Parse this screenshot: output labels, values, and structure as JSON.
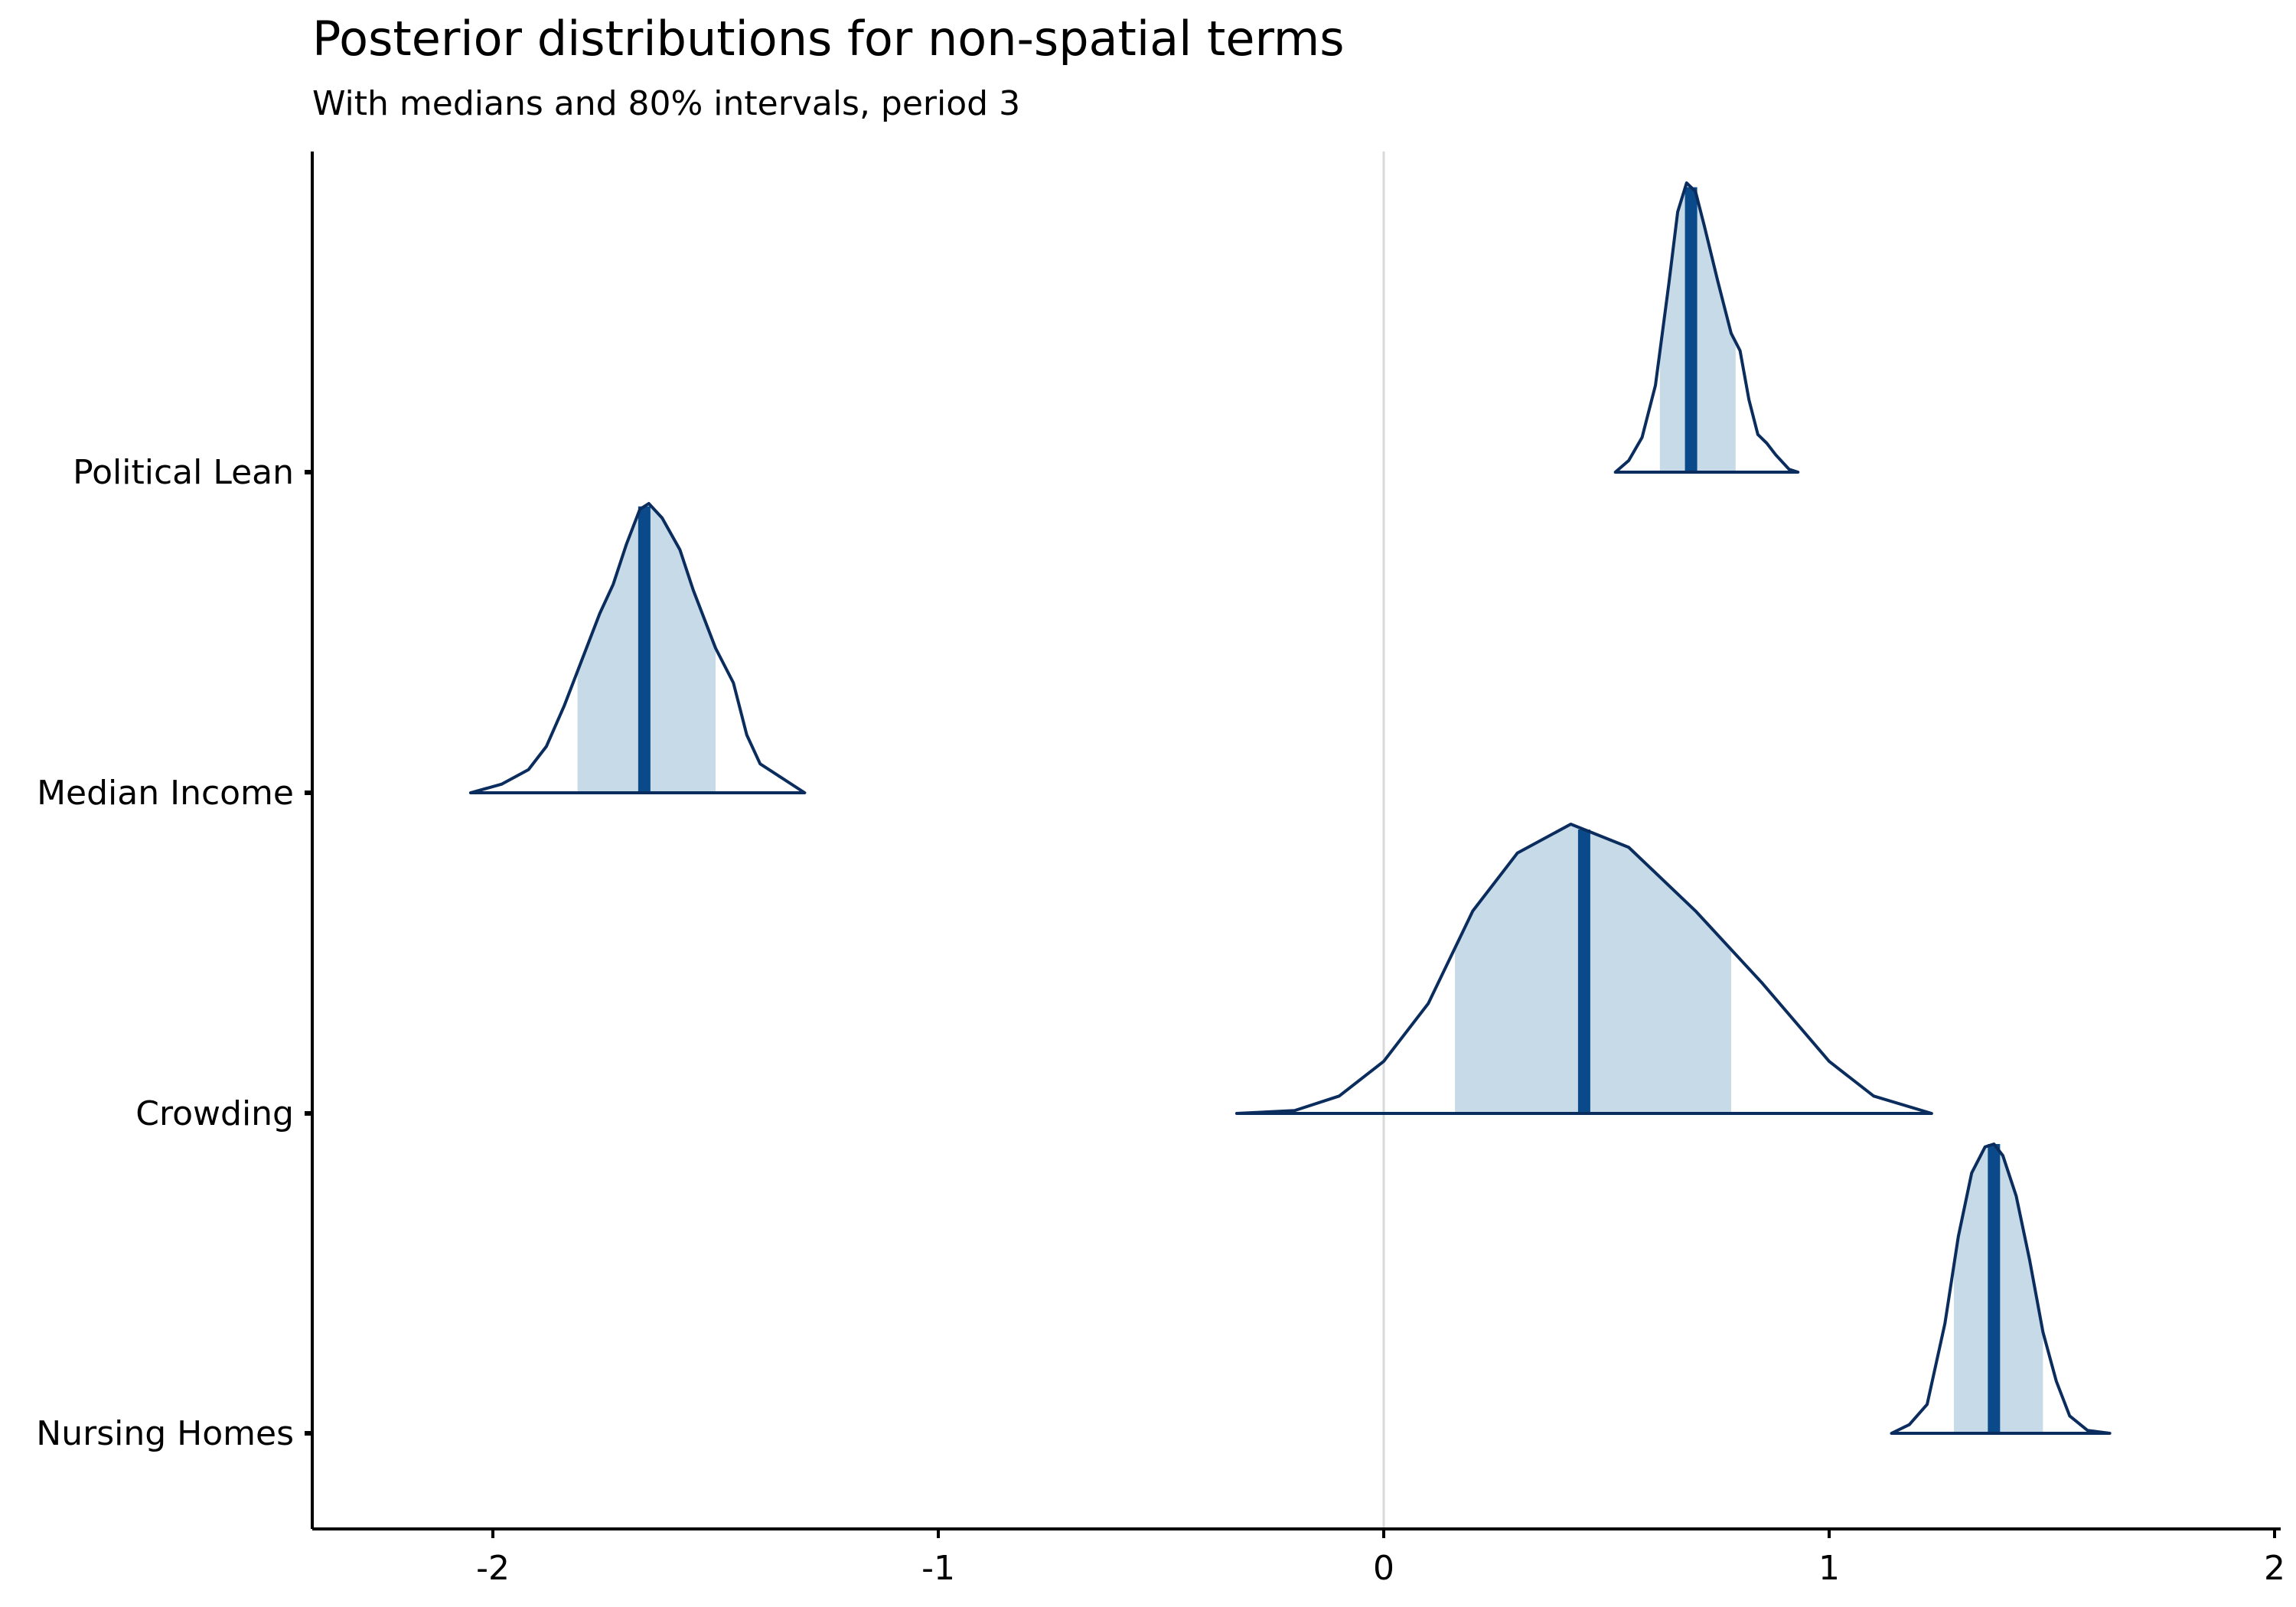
{
  "chart_data": {
    "type": "density-ridge",
    "title": "Posterior distributions for non-spatial terms",
    "subtitle": "With medians and 80% intervals, period 3",
    "xlabel": "",
    "ylabel": "",
    "xlim": [
      -2.45,
      2.0
    ],
    "xticks": [
      -2,
      -1,
      0,
      1,
      2
    ],
    "xtick_labels": [
      "-2",
      "-1",
      "0",
      "1",
      "2"
    ],
    "reference_line_x": 0,
    "grid": false,
    "colors": {
      "outline": "#0b2d5e",
      "interval_fill": "#c6dae8",
      "median": "#0b4a8a",
      "refline": "#d9d9d9",
      "axis": "#000000"
    },
    "series": [
      {
        "name": "Political Lean",
        "median": 0.69,
        "interval80": [
          0.62,
          0.79
        ],
        "density": [
          [
            0.52,
            0.0
          ],
          [
            0.55,
            0.04
          ],
          [
            0.58,
            0.12
          ],
          [
            0.61,
            0.3
          ],
          [
            0.64,
            0.65
          ],
          [
            0.66,
            0.9
          ],
          [
            0.68,
            1.0
          ],
          [
            0.7,
            0.97
          ],
          [
            0.72,
            0.85
          ],
          [
            0.75,
            0.66
          ],
          [
            0.78,
            0.48
          ],
          [
            0.8,
            0.42
          ],
          [
            0.82,
            0.25
          ],
          [
            0.84,
            0.13
          ],
          [
            0.86,
            0.1
          ],
          [
            0.88,
            0.06
          ],
          [
            0.91,
            0.01
          ],
          [
            0.93,
            0.0
          ]
        ]
      },
      {
        "name": "Median Income",
        "median": -1.66,
        "interval80": [
          -1.81,
          -1.5
        ],
        "density": [
          [
            -2.05,
            0.0
          ],
          [
            -1.98,
            0.03
          ],
          [
            -1.92,
            0.08
          ],
          [
            -1.88,
            0.16
          ],
          [
            -1.84,
            0.3
          ],
          [
            -1.8,
            0.46
          ],
          [
            -1.76,
            0.62
          ],
          [
            -1.73,
            0.72
          ],
          [
            -1.7,
            0.86
          ],
          [
            -1.67,
            0.98
          ],
          [
            -1.65,
            1.0
          ],
          [
            -1.62,
            0.95
          ],
          [
            -1.58,
            0.84
          ],
          [
            -1.55,
            0.7
          ],
          [
            -1.5,
            0.5
          ],
          [
            -1.46,
            0.38
          ],
          [
            -1.43,
            0.2
          ],
          [
            -1.4,
            0.1
          ],
          [
            -1.35,
            0.05
          ],
          [
            -1.3,
            0.0
          ]
        ]
      },
      {
        "name": "Crowding",
        "median": 0.45,
        "interval80": [
          0.16,
          0.78
        ],
        "density": [
          [
            -0.33,
            0.0
          ],
          [
            -0.2,
            0.01
          ],
          [
            -0.1,
            0.06
          ],
          [
            0.0,
            0.18
          ],
          [
            0.1,
            0.38
          ],
          [
            0.2,
            0.7
          ],
          [
            0.3,
            0.9
          ],
          [
            0.42,
            1.0
          ],
          [
            0.55,
            0.92
          ],
          [
            0.7,
            0.7
          ],
          [
            0.85,
            0.45
          ],
          [
            1.0,
            0.18
          ],
          [
            1.1,
            0.06
          ],
          [
            1.23,
            0.0
          ]
        ]
      },
      {
        "name": "Nursing Homes",
        "median": 1.37,
        "interval80": [
          1.28,
          1.48
        ],
        "density": [
          [
            1.14,
            0.0
          ],
          [
            1.18,
            0.03
          ],
          [
            1.22,
            0.1
          ],
          [
            1.26,
            0.38
          ],
          [
            1.29,
            0.68
          ],
          [
            1.32,
            0.9
          ],
          [
            1.35,
            0.99
          ],
          [
            1.37,
            1.0
          ],
          [
            1.39,
            0.96
          ],
          [
            1.42,
            0.82
          ],
          [
            1.45,
            0.6
          ],
          [
            1.48,
            0.35
          ],
          [
            1.51,
            0.18
          ],
          [
            1.54,
            0.06
          ],
          [
            1.58,
            0.01
          ],
          [
            1.63,
            0.0
          ]
        ]
      }
    ]
  }
}
